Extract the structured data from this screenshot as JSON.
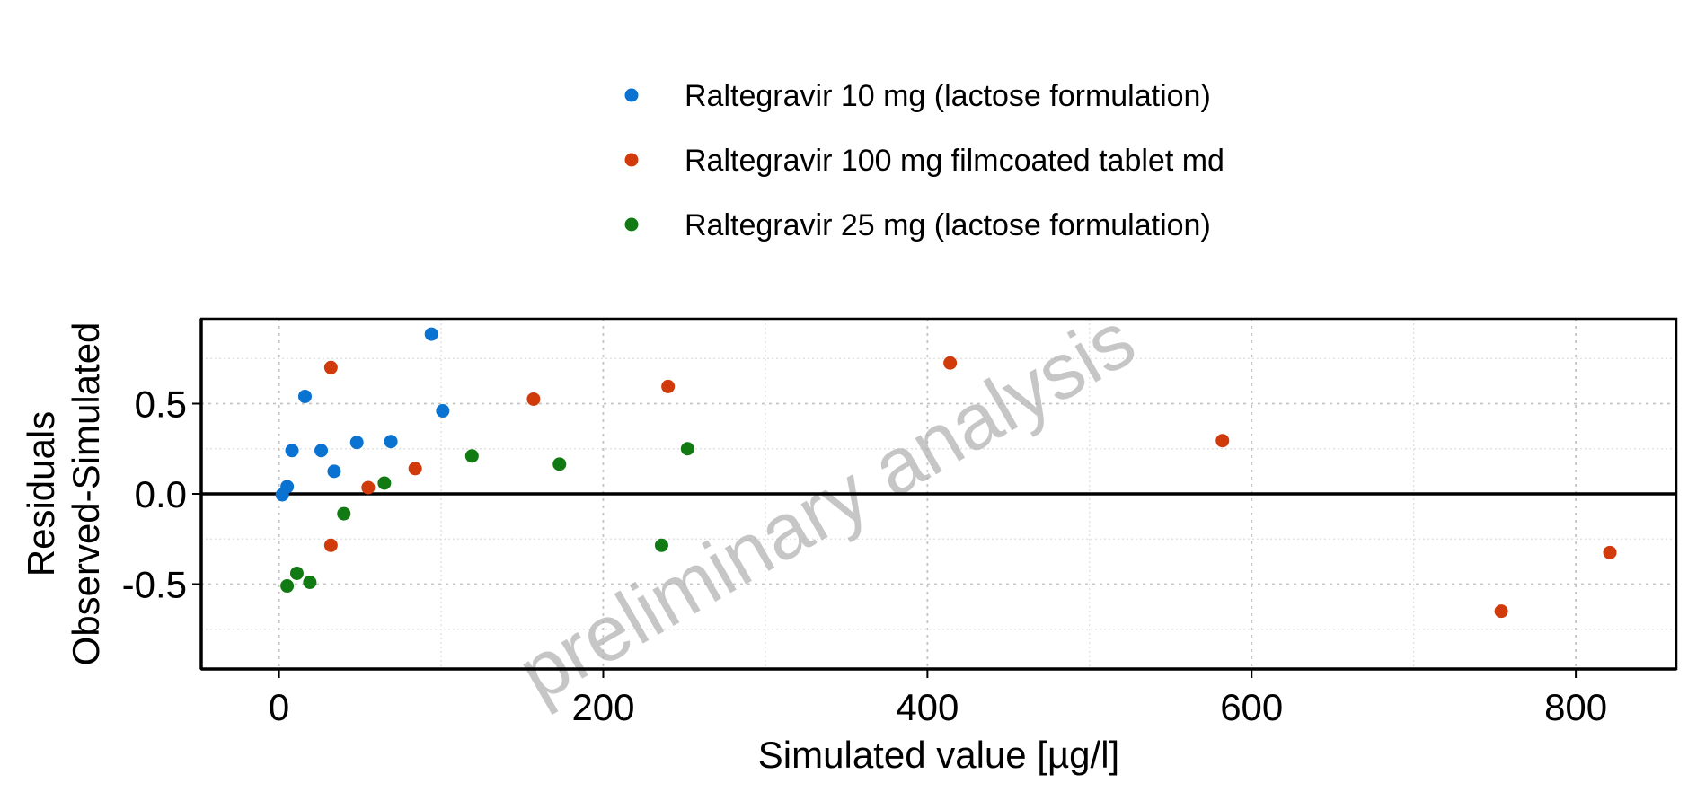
{
  "chart_data": {
    "type": "scatter",
    "title": "",
    "xlabel": "Simulated value [µg/l]",
    "ylabel_lines": [
      "Residuals",
      "Observed-Simulated"
    ],
    "watermark": "preliminary analysis",
    "xlim": [
      -48,
      862
    ],
    "ylim": [
      -0.97,
      0.97
    ],
    "x_ticks": [
      0,
      200,
      400,
      600,
      800
    ],
    "x_tick_labels": [
      "0",
      "200",
      "400",
      "600",
      "800"
    ],
    "y_ticks": [
      -0.5,
      0.0,
      0.5
    ],
    "y_tick_labels": [
      "-0.5",
      "0.0",
      "0.5"
    ],
    "x_minor_grid": [
      100,
      300,
      500,
      700
    ],
    "y_minor_grid": [
      -0.75,
      -0.25,
      0.25,
      0.75
    ],
    "grid": true,
    "reference_line_y": 0,
    "legend_position": "top",
    "series": [
      {
        "name": "Raltegravir 10 mg (lactose formulation)",
        "color": "#0A72D1",
        "points": [
          {
            "x": 2,
            "y": -0.005
          },
          {
            "x": 5,
            "y": 0.04
          },
          {
            "x": 8,
            "y": 0.24
          },
          {
            "x": 16,
            "y": 0.54
          },
          {
            "x": 26,
            "y": 0.24
          },
          {
            "x": 34,
            "y": 0.125
          },
          {
            "x": 48,
            "y": 0.285
          },
          {
            "x": 69,
            "y": 0.29
          },
          {
            "x": 94,
            "y": 0.885
          },
          {
            "x": 101,
            "y": 0.46
          }
        ]
      },
      {
        "name": "Raltegravir 100 mg filmcoated tablet md",
        "color": "#D13A0A",
        "points": [
          {
            "x": 32,
            "y": 0.7
          },
          {
            "x": 32,
            "y": -0.285
          },
          {
            "x": 55,
            "y": 0.035
          },
          {
            "x": 84,
            "y": 0.14
          },
          {
            "x": 157,
            "y": 0.525
          },
          {
            "x": 240,
            "y": 0.595
          },
          {
            "x": 414,
            "y": 0.725
          },
          {
            "x": 582,
            "y": 0.295
          },
          {
            "x": 754,
            "y": -0.65
          },
          {
            "x": 821,
            "y": -0.325
          }
        ]
      },
      {
        "name": "Raltegravir 25 mg (lactose formulation)",
        "color": "#127A12",
        "points": [
          {
            "x": 5,
            "y": -0.51
          },
          {
            "x": 11,
            "y": -0.44
          },
          {
            "x": 19,
            "y": -0.49
          },
          {
            "x": 40,
            "y": -0.11
          },
          {
            "x": 65,
            "y": 0.06
          },
          {
            "x": 119,
            "y": 0.21
          },
          {
            "x": 173,
            "y": 0.165
          },
          {
            "x": 236,
            "y": -0.285
          },
          {
            "x": 252,
            "y": 0.25
          }
        ]
      }
    ]
  }
}
